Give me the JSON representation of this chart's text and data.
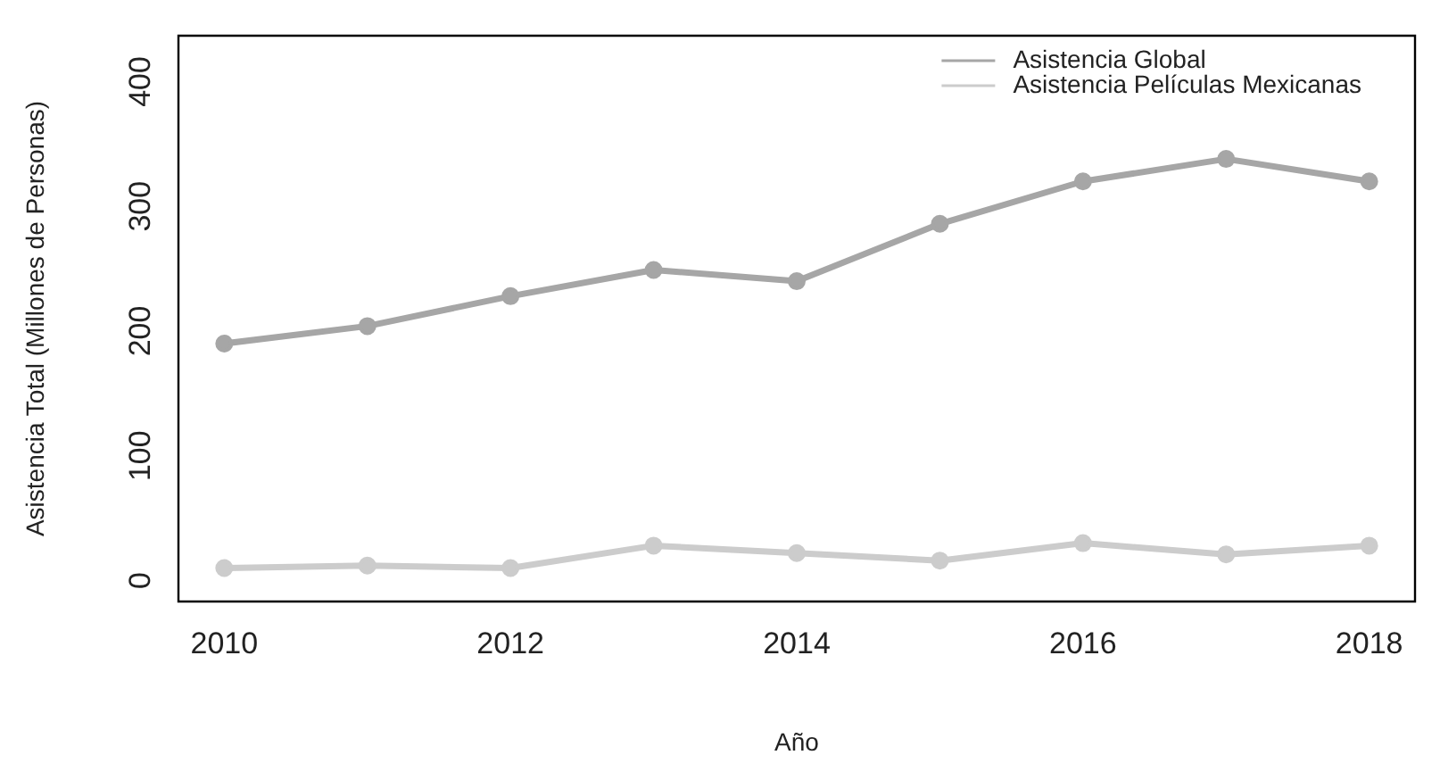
{
  "chart_data": {
    "type": "line",
    "x": [
      2010,
      2011,
      2012,
      2013,
      2014,
      2015,
      2016,
      2017,
      2018
    ],
    "series": [
      {
        "name": "Asistencia Global",
        "color": "#a6a6a6",
        "values": [
          190,
          204,
          228,
          249,
          240,
          286,
          320,
          338,
          320
        ]
      },
      {
        "name": "Asistencia Películas Mexicanas",
        "color": "#cccccc",
        "values": [
          10,
          12,
          10,
          28,
          22,
          16,
          30,
          21,
          28
        ]
      }
    ],
    "xlabel": "Año",
    "ylabel": "Asistencia Total (Millones de Personas)",
    "xlim": [
      2009.68,
      2018.32
    ],
    "xticks": [
      2010,
      2012,
      2014,
      2016,
      2018
    ],
    "ylim": [
      -16.8,
      436.8
    ],
    "yticks": [
      0,
      100,
      200,
      300,
      400
    ],
    "grid": false,
    "legend": "top right",
    "marker": "circle",
    "line_style": "solid"
  }
}
